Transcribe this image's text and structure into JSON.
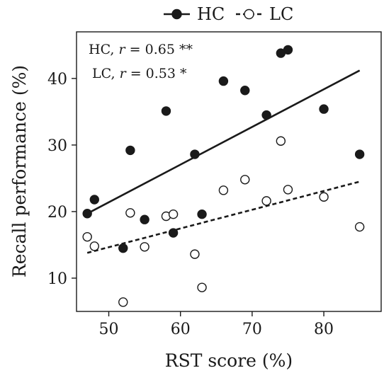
{
  "chart_data": {
    "type": "scatter",
    "title": "",
    "xlabel": "RST score (%)",
    "ylabel": "Recall performance (%)",
    "xlim": [
      45.5,
      88
    ],
    "ylim": [
      5,
      47
    ],
    "xticks": [
      50,
      60,
      70,
      80
    ],
    "yticks": [
      10,
      20,
      30,
      40
    ],
    "grid": false,
    "legend_position": "top-center",
    "series": [
      {
        "name": "HC",
        "marker": "filled-circle",
        "color": "#1a1a1a",
        "line_style": "solid",
        "points": [
          {
            "x": 47,
            "y": 19.7
          },
          {
            "x": 48,
            "y": 21.8
          },
          {
            "x": 52,
            "y": 14.5
          },
          {
            "x": 53,
            "y": 29.2
          },
          {
            "x": 55,
            "y": 18.8
          },
          {
            "x": 58,
            "y": 35.1
          },
          {
            "x": 59,
            "y": 16.8
          },
          {
            "x": 62,
            "y": 28.6
          },
          {
            "x": 63,
            "y": 19.6
          },
          {
            "x": 66,
            "y": 39.6
          },
          {
            "x": 69,
            "y": 38.2
          },
          {
            "x": 72,
            "y": 34.5
          },
          {
            "x": 74,
            "y": 43.8
          },
          {
            "x": 75,
            "y": 44.3
          },
          {
            "x": 80,
            "y": 35.4
          },
          {
            "x": 85,
            "y": 28.6
          }
        ],
        "fit": {
          "x": [
            47,
            85
          ],
          "y": [
            19.7,
            41.2
          ]
        }
      },
      {
        "name": "LC",
        "marker": "open-circle",
        "color": "#1a1a1a",
        "line_style": "dashed",
        "points": [
          {
            "x": 47,
            "y": 16.2
          },
          {
            "x": 48,
            "y": 14.8
          },
          {
            "x": 52,
            "y": 6.4
          },
          {
            "x": 53,
            "y": 19.8
          },
          {
            "x": 55,
            "y": 14.7
          },
          {
            "x": 58,
            "y": 19.3
          },
          {
            "x": 59,
            "y": 19.6
          },
          {
            "x": 62,
            "y": 13.6
          },
          {
            "x": 63,
            "y": 8.6
          },
          {
            "x": 66,
            "y": 23.2
          },
          {
            "x": 69,
            "y": 24.8
          },
          {
            "x": 72,
            "y": 21.6
          },
          {
            "x": 74,
            "y": 30.6
          },
          {
            "x": 75,
            "y": 23.3
          },
          {
            "x": 80,
            "y": 22.2
          },
          {
            "x": 85,
            "y": 17.7
          }
        ],
        "fit": {
          "x": [
            47,
            85
          ],
          "y": [
            13.8,
            24.5
          ]
        }
      }
    ],
    "annotations": [
      {
        "group": "HC",
        "prefix": "HC, ",
        "var": "r",
        "rest": " = 0.65 **"
      },
      {
        "group": "LC",
        "prefix": "LC, ",
        "var": "r",
        "rest": " = 0.53 *"
      }
    ]
  }
}
